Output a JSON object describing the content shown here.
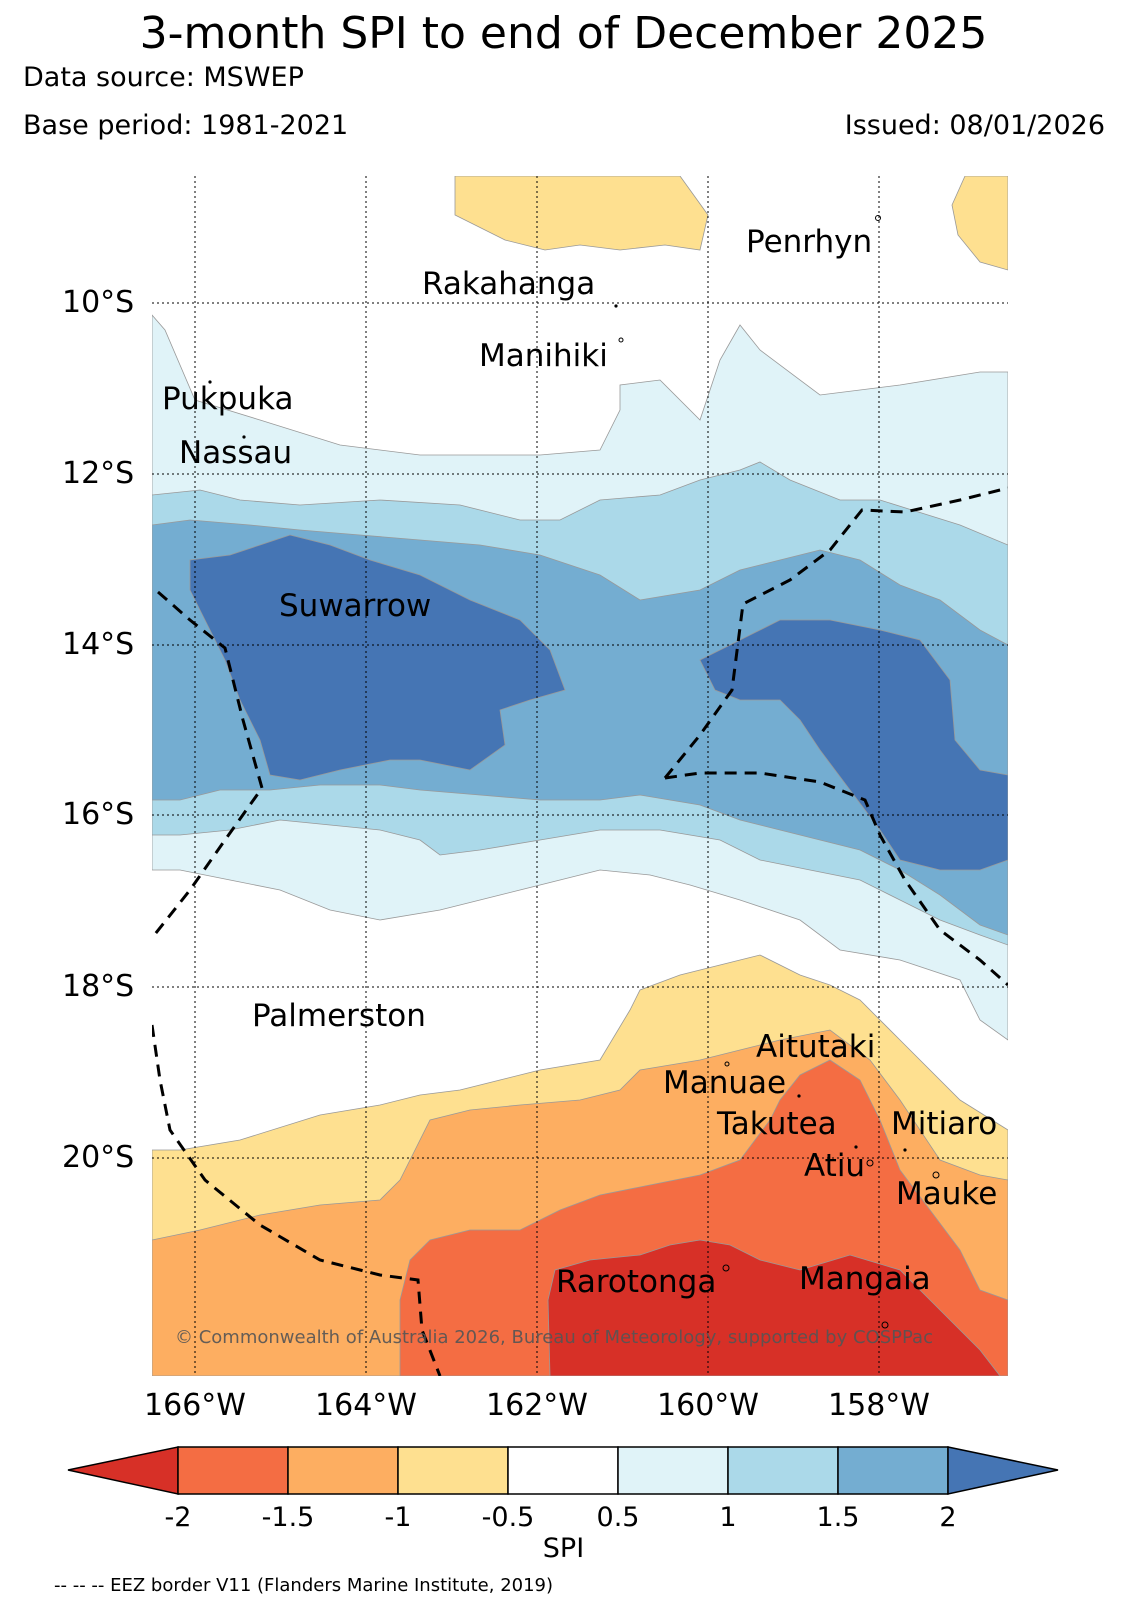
{
  "header": {
    "title": "3-month SPI to end of December 2025",
    "source": "Data source: MSWEP",
    "base_period": "Base period: 1981-2021",
    "issued": "Issued: 08/01/2026"
  },
  "map": {
    "lat_labels": [
      "10°S",
      "12°S",
      "14°S",
      "16°S",
      "18°S",
      "20°S"
    ],
    "lon_labels": [
      "166°W",
      "164°W",
      "162°W",
      "160°W",
      "158°W"
    ],
    "places": {
      "penrhyn": "Penrhyn",
      "rakahanga": "Rakahanga",
      "manihiki": "Manihiki",
      "pukapuka": "Pukpuka",
      "nassau": "Nassau",
      "suwarrow": "Suwarrow",
      "palmerston": "Palmerston",
      "aitutaki": "Aitutaki",
      "manuae": "Manuae",
      "takutea": "Takutea",
      "mitiaro": "Mitiaro",
      "atiu": "Atiu",
      "mauke": "Mauke",
      "rarotonga": "Rarotonga",
      "mangaia": "Mangaia"
    },
    "copyright": "© Commonwealth of Australia 2026, Bureau of Meteorology, supported by COSPPac"
  },
  "colorbar": {
    "ticks": [
      "-2",
      "-1.5",
      "-1",
      "-0.5",
      "0.5",
      "1",
      "1.5",
      "2"
    ],
    "label": "SPI",
    "colors": [
      "#d73027",
      "#f46d43",
      "#fdae61",
      "#fee090",
      "#ffffff",
      "#e0f3f8",
      "#abd9e9",
      "#74add1",
      "#4575b4"
    ]
  },
  "footer": {
    "eez_note": "-- -- -- EEZ border V11 (Flanders Marine Institute, 2019)"
  }
}
